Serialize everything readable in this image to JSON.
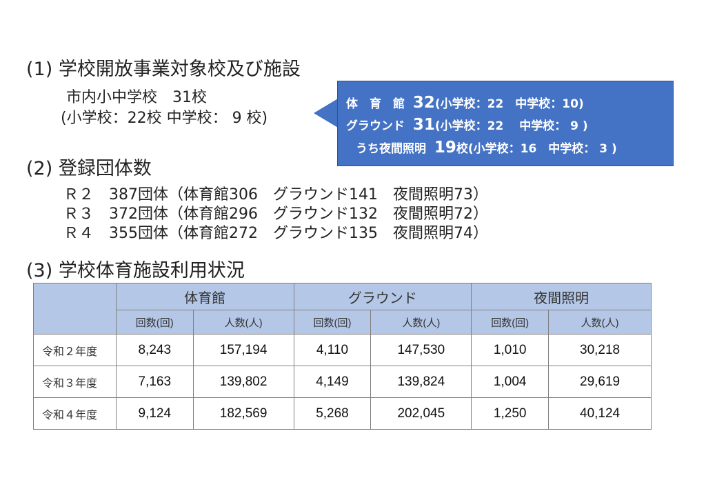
{
  "section1": {
    "title": "(1) 学校開放事業対象校及び施設",
    "line1": "市内小中学校　31校",
    "line2": "(小学校：22校 中学校： 9 校)"
  },
  "callout": {
    "row1": {
      "label": "体　育　館",
      "count": "32",
      "detail": "(小学校：22　中学校：10)"
    },
    "row2": {
      "label": "グラウンド",
      "count": "31",
      "detail": "(小学校：22　 中学校： 9 )"
    },
    "row3": {
      "label": "うち夜間照明",
      "count": "19",
      "suffix": "校",
      "detail": "(小学校：16　中学校： 3 )"
    }
  },
  "section2": {
    "title": "(2) 登録団体数",
    "rows": [
      "Ｒ２　387団体（体育館306　グラウンド141　夜間照明73）",
      "Ｒ３　372団体（体育館296　グラウンド132　夜間照明72）",
      "Ｒ４　355団体（体育館272　グラウンド135　夜間照明74）"
    ]
  },
  "section3": {
    "title": "(3) 学校体育施設利用状況",
    "table": {
      "groups": [
        "体育館",
        "グラウンド",
        "夜間照明"
      ],
      "subheaders": [
        "回数(回)",
        "人数(人)",
        "回数(回)",
        "人数(人)",
        "回数(回)",
        "人数(人)"
      ],
      "rows": [
        {
          "year": "令和２年度",
          "values": [
            "8,243",
            "157,194",
            "4,110",
            "147,530",
            "1,010",
            "30,218"
          ]
        },
        {
          "year": "令和３年度",
          "values": [
            "7,163",
            "139,802",
            "4,149",
            "139,824",
            "1,004",
            "29,619"
          ]
        },
        {
          "year": "令和４年度",
          "values": [
            "9,124",
            "182,569",
            "5,268",
            "202,045",
            "1,250",
            "40,124"
          ]
        }
      ]
    }
  },
  "colors": {
    "callout_bg": "#4472c4",
    "table_header_bg": "#b4c7e7"
  }
}
